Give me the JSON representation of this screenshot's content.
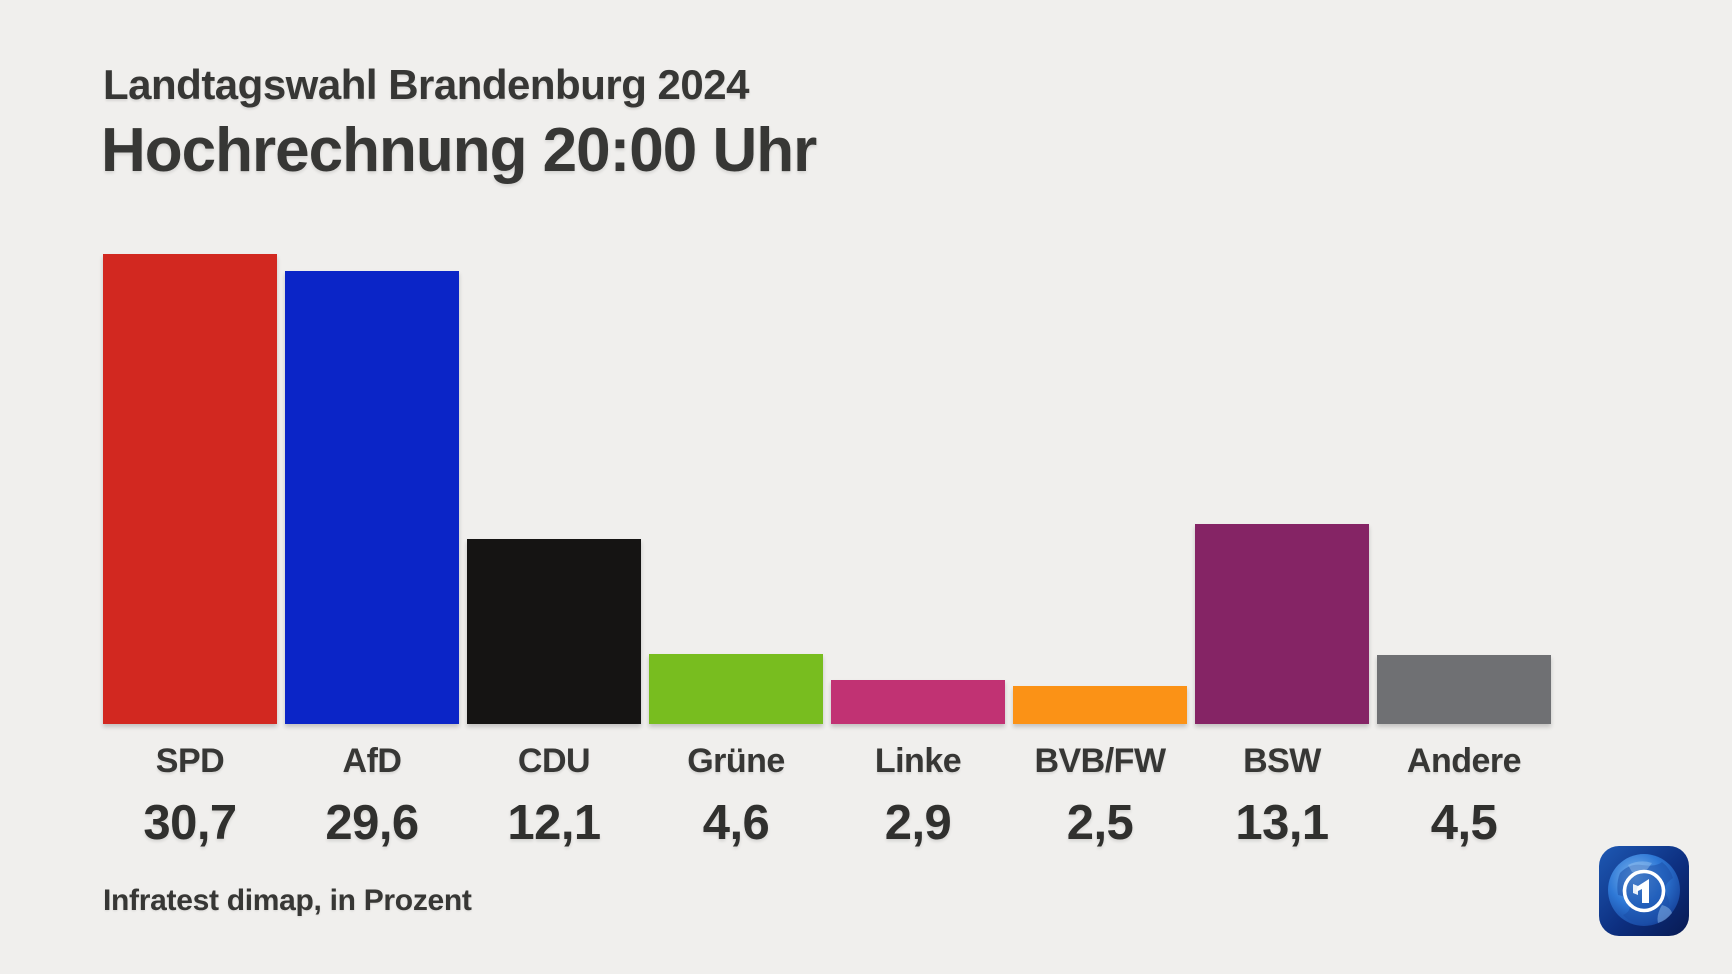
{
  "page": {
    "background": "#f0efed",
    "text_color": "#373735"
  },
  "header": {
    "kicker": "Landtagswahl Brandenburg 2024",
    "title": "Hochrechnung 20:00 Uhr"
  },
  "footer": {
    "source": "Infratest dimap, in Prozent"
  },
  "logo": {
    "name": "ARD Das Erste",
    "glyph": "1",
    "primary_color": "#1d5fc0",
    "dark_color": "#0b1f5e"
  },
  "chart_data": {
    "type": "bar",
    "title": "Hochrechnung 20:00 Uhr",
    "kicker": "Landtagswahl Brandenburg 2024",
    "source": "Infratest dimap, in Prozent",
    "unit": "Prozent",
    "ylabel": "",
    "xlabel": "",
    "ylim": [
      0,
      31
    ],
    "grid": false,
    "legend": "none",
    "categories": [
      "SPD",
      "AfD",
      "CDU",
      "Grüne",
      "Linke",
      "BVB/FW",
      "BSW",
      "Andere"
    ],
    "values": [
      30.7,
      29.6,
      12.1,
      4.6,
      2.9,
      2.5,
      13.1,
      4.5
    ],
    "value_labels": [
      "30,7",
      "29,6",
      "12,1",
      "4,6",
      "2,9",
      "2,5",
      "13,1",
      "4,5"
    ],
    "colors": [
      "#d22820",
      "#0b25c7",
      "#151413",
      "#78bd1f",
      "#c13273",
      "#fb9216",
      "#852465",
      "#6f7073"
    ]
  }
}
